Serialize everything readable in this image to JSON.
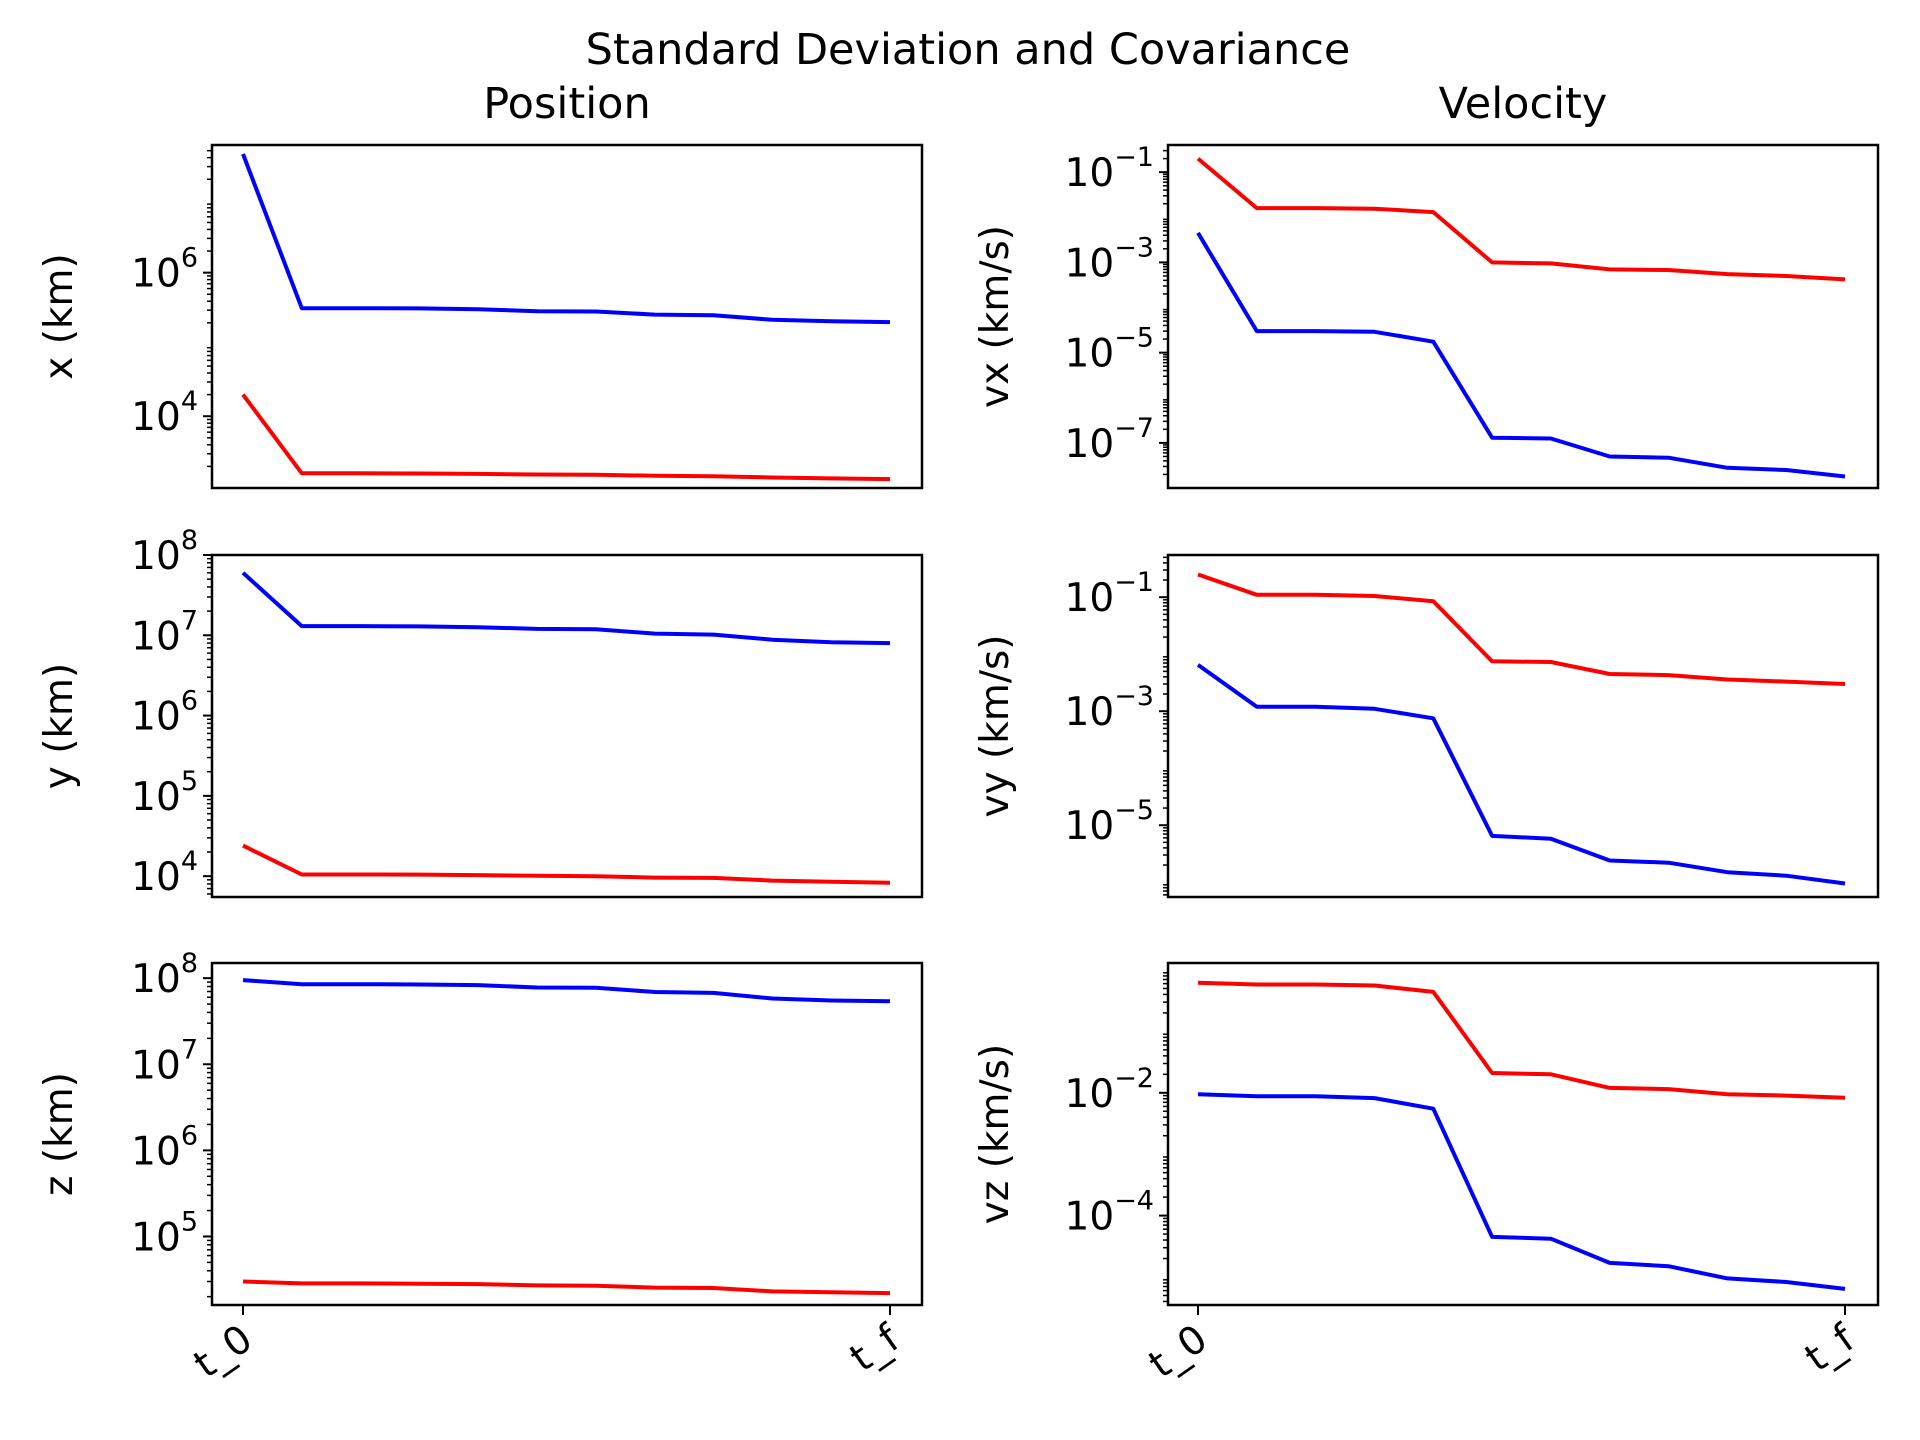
{
  "title": "Standard Deviation and Covariance",
  "colors": {
    "series_a": "#0000ff",
    "series_b": "#ff0000",
    "axis": "#000000"
  },
  "chart_data": [
    {
      "type": "line",
      "column_title": "Position",
      "ylabel": "x (km)",
      "yscale": "log",
      "ylim": [
        1000,
        60000000
      ],
      "yticks": [
        {
          "base": "10",
          "exp": "4",
          "value": 10000
        },
        {
          "base": "10",
          "exp": "6",
          "value": 1000000
        }
      ],
      "x": [
        0,
        1,
        2,
        3,
        4,
        5,
        6,
        7,
        8,
        9,
        10,
        11
      ],
      "xtick_labels": [
        {
          "label": "t_0",
          "x": 0
        },
        {
          "label": "t_f",
          "x": 11
        }
      ],
      "series": [
        {
          "color": "#0000ff",
          "values": [
            45000000,
            320000,
            320000,
            318000,
            310000,
            290000,
            288000,
            260000,
            255000,
            220000,
            210000,
            205000
          ]
        },
        {
          "color": "#ff0000",
          "values": [
            20000,
            1600,
            1600,
            1590,
            1570,
            1540,
            1530,
            1480,
            1460,
            1400,
            1360,
            1330
          ]
        }
      ]
    },
    {
      "type": "line",
      "column_title": "Velocity",
      "ylabel": "vx (km/s)",
      "yscale": "log",
      "ylim": [
        1e-08,
        0.4
      ],
      "yticks": [
        {
          "base": "10",
          "exp": "−1",
          "value": 0.1
        },
        {
          "base": "10",
          "exp": "−3",
          "value": 0.001
        },
        {
          "base": "10",
          "exp": "−5",
          "value": 1e-05
        },
        {
          "base": "10",
          "exp": "−7",
          "value": 1e-07
        }
      ],
      "x": [
        0,
        1,
        2,
        3,
        4,
        5,
        6,
        7,
        8,
        9,
        10,
        11
      ],
      "xtick_labels": [
        {
          "label": "t_0",
          "x": 0
        },
        {
          "label": "t_f",
          "x": 11
        }
      ],
      "series": [
        {
          "color": "#ff0000",
          "values": [
            0.2,
            0.016,
            0.016,
            0.0155,
            0.013,
            0.001,
            0.00095,
            0.0007,
            0.00068,
            0.00055,
            0.0005,
            0.00042
          ]
        },
        {
          "color": "#0000ff",
          "values": [
            0.0045,
            3e-05,
            3e-05,
            2.9e-05,
            1.75e-05,
            1.3e-07,
            1.25e-07,
            5e-08,
            4.7e-08,
            2.8e-08,
            2.5e-08,
            1.8e-08
          ]
        }
      ]
    },
    {
      "type": "line",
      "ylabel": "y (km)",
      "yscale": "log",
      "ylim": [
        5500,
        100000000
      ],
      "yticks": [
        {
          "base": "10",
          "exp": "4",
          "value": 10000
        },
        {
          "base": "10",
          "exp": "5",
          "value": 100000
        },
        {
          "base": "10",
          "exp": "6",
          "value": 1000000
        },
        {
          "base": "10",
          "exp": "7",
          "value": 10000000
        },
        {
          "base": "10",
          "exp": "8",
          "value": 100000000
        }
      ],
      "x": [
        0,
        1,
        2,
        3,
        4,
        5,
        6,
        7,
        8,
        9,
        10,
        11
      ],
      "xtick_labels": [
        {
          "label": "t_0",
          "x": 0
        },
        {
          "label": "t_f",
          "x": 11
        }
      ],
      "series": [
        {
          "color": "#0000ff",
          "values": [
            60000000,
            13000000,
            13000000,
            12900000,
            12600000,
            12000000,
            11900000,
            10500000,
            10200000,
            8800000,
            8200000,
            8000000
          ]
        },
        {
          "color": "#ff0000",
          "values": [
            24000,
            10500,
            10500,
            10450,
            10300,
            10100,
            10000,
            9600,
            9500,
            8800,
            8500,
            8300
          ]
        }
      ]
    },
    {
      "type": "line",
      "ylabel": "vy (km/s)",
      "yscale": "log",
      "ylim": [
        5.5e-07,
        0.55
      ],
      "yticks": [
        {
          "base": "10",
          "exp": "−1",
          "value": 0.1
        },
        {
          "base": "10",
          "exp": "−3",
          "value": 0.001
        },
        {
          "base": "10",
          "exp": "−5",
          "value": 1e-05
        }
      ],
      "x": [
        0,
        1,
        2,
        3,
        4,
        5,
        6,
        7,
        8,
        9,
        10,
        11
      ],
      "xtick_labels": [
        {
          "label": "t_0",
          "x": 0
        },
        {
          "label": "t_f",
          "x": 11
        }
      ],
      "series": [
        {
          "color": "#ff0000",
          "values": [
            0.25,
            0.11,
            0.11,
            0.105,
            0.085,
            0.0075,
            0.0073,
            0.0045,
            0.0043,
            0.0036,
            0.0033,
            0.003
          ]
        },
        {
          "color": "#0000ff",
          "values": [
            0.0065,
            0.0012,
            0.0012,
            0.0011,
            0.00075,
            6.5e-06,
            5.8e-06,
            2.4e-06,
            2.2e-06,
            1.5e-06,
            1.3e-06,
            9.5e-07
          ]
        }
      ]
    },
    {
      "type": "line",
      "ylabel": "z (km)",
      "yscale": "log",
      "ylim": [
        16000,
        150000000
      ],
      "yticks": [
        {
          "base": "10",
          "exp": "5",
          "value": 100000
        },
        {
          "base": "10",
          "exp": "6",
          "value": 1000000
        },
        {
          "base": "10",
          "exp": "7",
          "value": 10000000
        },
        {
          "base": "10",
          "exp": "8",
          "value": 100000000
        }
      ],
      "x": [
        0,
        1,
        2,
        3,
        4,
        5,
        6,
        7,
        8,
        9,
        10,
        11
      ],
      "xtick_labels": [
        {
          "label": "t_0",
          "x": 0
        },
        {
          "label": "t_f",
          "x": 11
        }
      ],
      "series": [
        {
          "color": "#0000ff",
          "values": [
            95000000,
            85000000,
            85000000,
            84500000,
            83000000,
            78000000,
            77500000,
            69000000,
            67500000,
            58000000,
            55000000,
            54000000
          ]
        },
        {
          "color": "#ff0000",
          "values": [
            30000,
            28500,
            28500,
            28300,
            28000,
            27000,
            26800,
            25500,
            25200,
            23000,
            22500,
            22000
          ]
        }
      ]
    },
    {
      "type": "line",
      "ylabel": "vz (km/s)",
      "yscale": "log",
      "ylim": [
        3.5e-06,
        1.3
      ],
      "yticks": [
        {
          "base": "10",
          "exp": "−2",
          "value": 0.01
        },
        {
          "base": "10",
          "exp": "−4",
          "value": 0.0001
        }
      ],
      "x": [
        0,
        1,
        2,
        3,
        4,
        5,
        6,
        7,
        8,
        9,
        10,
        11
      ],
      "xtick_labels": [
        {
          "label": "t_0",
          "x": 0
        },
        {
          "label": "t_f",
          "x": 11
        }
      ],
      "series": [
        {
          "color": "#ff0000",
          "values": [
            0.62,
            0.58,
            0.58,
            0.56,
            0.44,
            0.021,
            0.02,
            0.012,
            0.0115,
            0.0095,
            0.009,
            0.0083
          ]
        },
        {
          "color": "#0000ff",
          "values": [
            0.0095,
            0.0088,
            0.0088,
            0.0082,
            0.0055,
            4.5e-05,
            4.2e-05,
            1.7e-05,
            1.5e-05,
            9.5e-06,
            8.3e-06,
            6.4e-06
          ]
        }
      ]
    }
  ]
}
